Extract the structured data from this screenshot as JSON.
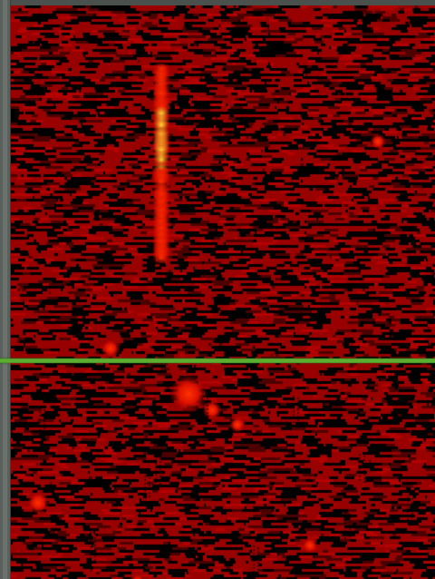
{
  "waterfall": {
    "colors": {
      "base": "#990000",
      "dark": "#000000",
      "mid": "#b30000",
      "hot": "#ff3300",
      "peak": "#ffdd33"
    },
    "seed": 13579
  },
  "marker": {
    "color": "#5cae30"
  }
}
